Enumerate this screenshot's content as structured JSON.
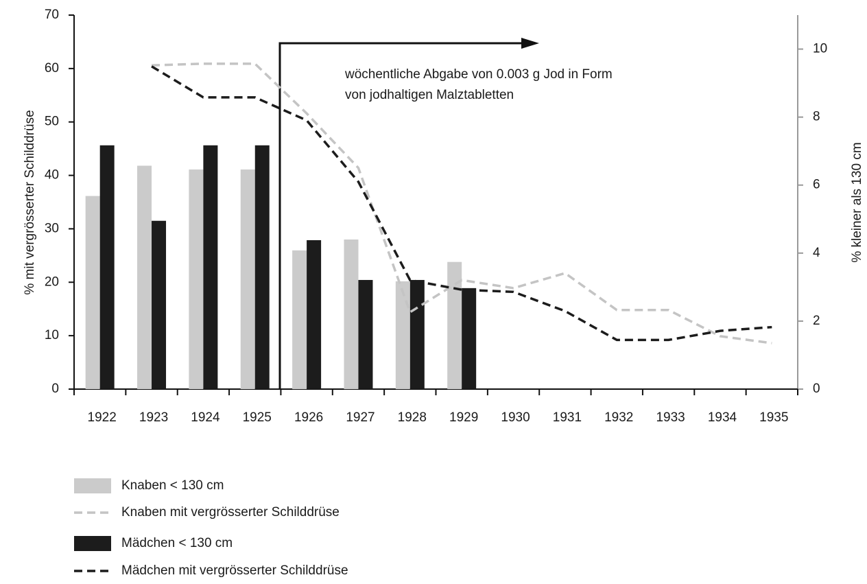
{
  "chart_data": {
    "type": "bar",
    "categories": [
      "1922",
      "1923",
      "1924",
      "1925",
      "1926",
      "1927",
      "1928",
      "1929",
      "1930",
      "1931",
      "1932",
      "1933",
      "1934",
      "1935"
    ],
    "ylabel": "% mit vergrösserter Schilddrüse",
    "y2label": "% kleiner als 130 cm",
    "ylim": [
      0,
      70
    ],
    "yticks": [
      0,
      10,
      20,
      30,
      40,
      50,
      60,
      70
    ],
    "y2lim": [
      0,
      11
    ],
    "y2ticks": [
      0,
      2,
      4,
      6,
      8,
      10
    ],
    "annotation": [
      "wöchentliche Abgabe von 0.003 g Jod in Form",
      "von jodhaltigen Malztabletten"
    ],
    "series": [
      {
        "name": "Knaben < 130 cm",
        "type": "bar",
        "axis": "y2",
        "color": "#cbcbcb",
        "values": [
          5.68,
          6.57,
          6.46,
          6.46,
          4.08,
          4.4,
          3.17,
          3.74,
          null,
          null,
          null,
          null,
          null,
          null
        ]
      },
      {
        "name": "Knaben mit vergrösserter Schilddrüse",
        "type": "line",
        "color": "#c4c4c4",
        "values": [
          null,
          60.6,
          60.9,
          60.9,
          51.6,
          41.4,
          14.4,
          20.4,
          18.9,
          21.7,
          14.8,
          14.8,
          9.9,
          8.6
        ]
      },
      {
        "name": "Mädchen < 130 cm",
        "type": "bar",
        "axis": "y2",
        "color": "#1c1c1c",
        "values": [
          7.17,
          4.95,
          7.17,
          7.17,
          4.38,
          3.21,
          3.21,
          2.97,
          null,
          null,
          null,
          null,
          null,
          null
        ]
      },
      {
        "name": "Mädchen mit vergrösserter Schilddrüse",
        "type": "line",
        "color": "#1c1c1c",
        "values": [
          null,
          60.4,
          54.6,
          54.6,
          50.3,
          38.8,
          20.4,
          18.6,
          18.2,
          14.6,
          9.2,
          9.2,
          10.9,
          11.6
        ]
      }
    ]
  }
}
